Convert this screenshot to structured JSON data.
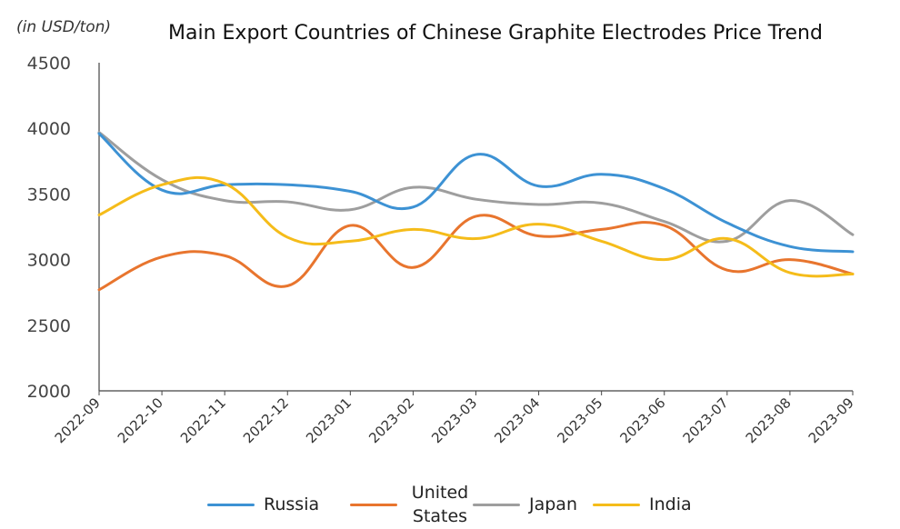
{
  "chart_data": {
    "type": "line",
    "title": "Main Export Countries of Chinese Graphite Electrodes Price Trend",
    "unit_label": "(in USD/ton)",
    "xlabel": "",
    "ylabel": "",
    "ylim": [
      2000,
      4500
    ],
    "yticks": [
      "2000",
      "2500",
      "3000",
      "3500",
      "4000",
      "4500"
    ],
    "categories": [
      "2022-09",
      "2022-10",
      "2022-11",
      "2022-12",
      "2023-01",
      "2023-02",
      "2023-03",
      "2023-04",
      "2023-05",
      "2023-06",
      "2023-07",
      "2023-08",
      "2023-09"
    ],
    "series": [
      {
        "name": "Russia",
        "color": "#3d92d4",
        "values": [
          3960,
          3530,
          3570,
          3570,
          3520,
          3400,
          3800,
          3560,
          3650,
          3540,
          3280,
          3100,
          3060
        ]
      },
      {
        "name": "United States",
        "color": "#e8752e",
        "values": [
          2770,
          3020,
          3030,
          2800,
          3260,
          2940,
          3330,
          3180,
          3230,
          3260,
          2920,
          3000,
          2890
        ]
      },
      {
        "name": "Japan",
        "color": "#9e9e9e",
        "values": [
          3970,
          3610,
          3450,
          3440,
          3380,
          3550,
          3460,
          3420,
          3430,
          3290,
          3140,
          3450,
          3190
        ]
      },
      {
        "name": "India",
        "color": "#f5bc1a",
        "values": [
          3340,
          3570,
          3580,
          3170,
          3140,
          3230,
          3160,
          3270,
          3140,
          3000,
          3160,
          2900,
          2890
        ]
      }
    ],
    "legend": "bottom",
    "grid": false
  }
}
